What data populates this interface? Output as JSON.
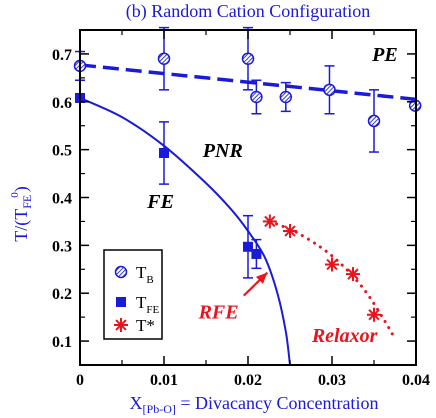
{
  "chart_data": {
    "type": "scatter",
    "title": "(b)   Random Cation Configuration",
    "xlabel": {
      "main": "X",
      "sub": "[Pb-O]",
      "rest": " = Divacancy Concentration"
    },
    "ylabel": {
      "main": "T/(T",
      "sub": "FE",
      "sup": "0",
      "close": ")"
    },
    "xlim": [
      0,
      0.04
    ],
    "ylim": [
      0.05,
      0.75
    ],
    "xticks": [
      "0",
      "0.01",
      "0.02",
      "0.03",
      "0.04"
    ],
    "yticks": [
      "0.1",
      "0.2",
      "0.3",
      "0.4",
      "0.5",
      "0.6",
      "0.7"
    ],
    "colors": {
      "blue": "#1a1ad8",
      "red": "#e8141e",
      "axis": "#000000"
    },
    "series": [
      {
        "name": "T_B",
        "legend": {
          "main": "T",
          "sub": "B"
        },
        "marker": "hatched-circle",
        "points": [
          {
            "x": 0.0,
            "y": 0.675,
            "err": 0.03
          },
          {
            "x": 0.01,
            "y": 0.69,
            "err": 0.065
          },
          {
            "x": 0.02,
            "y": 0.69,
            "err": 0.065
          },
          {
            "x": 0.021,
            "y": 0.61,
            "err": 0.035
          },
          {
            "x": 0.0245,
            "y": 0.61,
            "err": 0.03
          },
          {
            "x": 0.0297,
            "y": 0.625,
            "err": 0.05
          },
          {
            "x": 0.035,
            "y": 0.56,
            "err": 0.065
          },
          {
            "x": 0.0399,
            "y": 0.592,
            "err": 0.0
          }
        ]
      },
      {
        "name": "T_FE",
        "legend": {
          "main": "T",
          "sub": "FE"
        },
        "marker": "filled-square",
        "points": [
          {
            "x": 0.0,
            "y": 0.608,
            "err": 0.0
          },
          {
            "x": 0.01,
            "y": 0.493,
            "err": 0.065
          },
          {
            "x": 0.02,
            "y": 0.297,
            "err": 0.065
          },
          {
            "x": 0.021,
            "y": 0.282,
            "err": 0.03
          }
        ]
      },
      {
        "name": "T*",
        "legend": {
          "main": "T*",
          "sub": ""
        },
        "marker": "red-star",
        "points": [
          {
            "x": 0.0226,
            "y": 0.35
          },
          {
            "x": 0.025,
            "y": 0.33
          },
          {
            "x": 0.03,
            "y": 0.26
          },
          {
            "x": 0.0325,
            "y": 0.24
          },
          {
            "x": 0.035,
            "y": 0.155
          }
        ]
      }
    ],
    "tb_fit_line": {
      "style": "dashed",
      "from": [
        0.0,
        0.677
      ],
      "to": [
        0.04,
        0.605
      ]
    },
    "tfe_curve": {
      "style": "solid",
      "points": [
        [
          0.0,
          0.608
        ],
        [
          0.005,
          0.568
        ],
        [
          0.01,
          0.508
        ],
        [
          0.015,
          0.43
        ],
        [
          0.018,
          0.375
        ],
        [
          0.02,
          0.33
        ],
        [
          0.022,
          0.275
        ],
        [
          0.0235,
          0.2
        ],
        [
          0.0245,
          0.12
        ],
        [
          0.025,
          0.05
        ]
      ]
    },
    "tstar_curve": {
      "style": "dotted",
      "points": [
        [
          0.0226,
          0.35
        ],
        [
          0.026,
          0.325
        ],
        [
          0.03,
          0.278
        ],
        [
          0.0335,
          0.215
        ],
        [
          0.036,
          0.15
        ],
        [
          0.0375,
          0.105
        ]
      ]
    },
    "arrow": {
      "from": [
        0.0195,
        0.195
      ],
      "to": [
        0.0223,
        0.243
      ]
    },
    "regions": [
      {
        "label": "PE",
        "x": 0.0363,
        "y": 0.685
      },
      {
        "label": "PNR",
        "x": 0.017,
        "y": 0.485
      },
      {
        "label": "FE",
        "x": 0.0096,
        "y": 0.378
      },
      {
        "label": "RFE",
        "x": 0.0165,
        "y": 0.147,
        "red": true
      },
      {
        "label": "Relaxor",
        "x": 0.0315,
        "y": 0.098,
        "red": true
      }
    ]
  }
}
